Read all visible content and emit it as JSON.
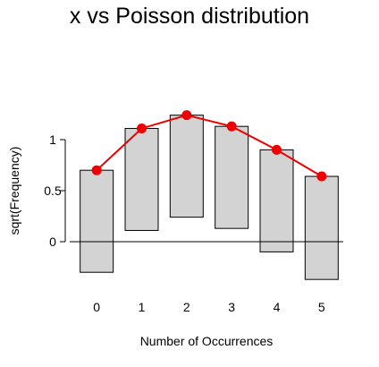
{
  "chart_data": {
    "type": "bar",
    "title": "x vs Poisson distribution",
    "xlabel": "Number of Occurrences",
    "ylabel": "sqrt(Frequency)",
    "categories": [
      "0",
      "1",
      "2",
      "3",
      "4",
      "5"
    ],
    "y_ticks": [
      "0",
      "0.5",
      "1"
    ],
    "ylim": [
      -0.42,
      1.42
    ],
    "grid": false,
    "series": [
      {
        "kind": "hanging-bars",
        "bar_top": [
          0.7,
          1.11,
          1.24,
          1.13,
          0.9,
          0.64
        ],
        "bar_bottom": [
          -0.3,
          0.11,
          0.24,
          0.13,
          -0.1,
          -0.37
        ],
        "fill_color": "#d3d3d3",
        "stroke_color": "#000000"
      },
      {
        "kind": "expected-line",
        "values": [
          0.7,
          1.11,
          1.24,
          1.13,
          0.9,
          0.64
        ],
        "color": "#ee0000"
      }
    ]
  }
}
